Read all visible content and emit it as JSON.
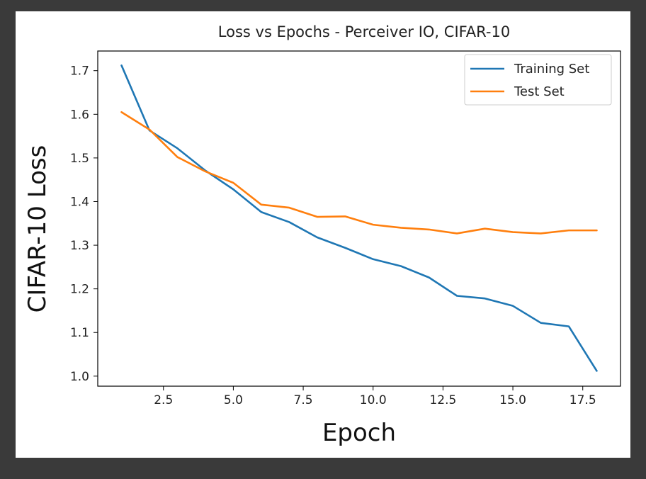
{
  "chart_data": {
    "type": "line",
    "title": "Loss vs Epochs - Perceiver IO, CIFAR-10",
    "xlabel": "Epoch",
    "ylabel": "CIFAR-10 Loss",
    "xlim": [
      0.15,
      18.85
    ],
    "ylim": [
      0.977,
      1.745
    ],
    "xticks": [
      2.5,
      5.0,
      7.5,
      10.0,
      12.5,
      15.0,
      17.5
    ],
    "xtick_labels": [
      "2.5",
      "5.0",
      "7.5",
      "10.0",
      "12.5",
      "15.0",
      "17.5"
    ],
    "yticks": [
      1.0,
      1.1,
      1.2,
      1.3,
      1.4,
      1.5,
      1.6,
      1.7
    ],
    "ytick_labels": [
      "1.0",
      "1.1",
      "1.2",
      "1.3",
      "1.4",
      "1.5",
      "1.6",
      "1.7"
    ],
    "grid": false,
    "legend_position": "top-right",
    "x": [
      1,
      2,
      3,
      4,
      5,
      6,
      7,
      8,
      9,
      10,
      11,
      12,
      13,
      14,
      15,
      16,
      17,
      18
    ],
    "series": [
      {
        "name": "Training Set",
        "color": "#1f77b4",
        "values": [
          1.712,
          1.563,
          1.522,
          1.471,
          1.428,
          1.376,
          1.353,
          1.318,
          1.294,
          1.268,
          1.252,
          1.226,
          1.184,
          1.178,
          1.161,
          1.122,
          1.114,
          1.012
        ]
      },
      {
        "name": "Test Set",
        "color": "#ff7f0e",
        "values": [
          1.605,
          1.565,
          1.502,
          1.469,
          1.443,
          1.393,
          1.386,
          1.365,
          1.366,
          1.347,
          1.34,
          1.336,
          1.327,
          1.338,
          1.33,
          1.327,
          1.334,
          1.334
        ]
      }
    ]
  }
}
